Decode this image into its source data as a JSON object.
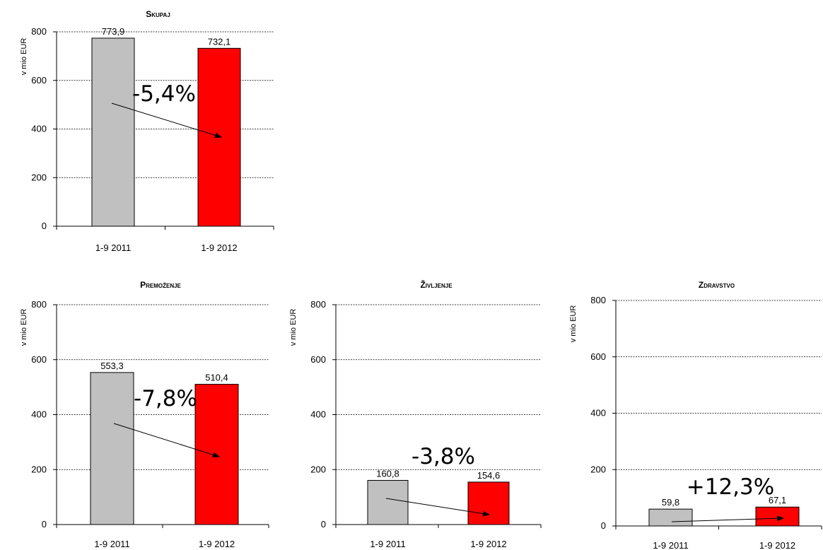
{
  "chart_data": [
    {
      "type": "bar",
      "title": "Skupaj",
      "ylabel": "v mio EUR",
      "categories": [
        "1-9 2011",
        "1-9 2012"
      ],
      "values": [
        773.9,
        732.1
      ],
      "value_labels": [
        "773,9",
        "732,1"
      ],
      "ylim": [
        0,
        800
      ],
      "yticks": [
        "0",
        "200",
        "400",
        "600",
        "800"
      ],
      "bar_colors": [
        "#c0c0c0",
        "#ff0000"
      ],
      "grid": true,
      "annotation": "-5,4%"
    },
    {
      "type": "bar",
      "title": "Premoženje",
      "ylabel": "v mio EUR",
      "categories": [
        "1-9 2011",
        "1-9 2012"
      ],
      "values": [
        553.3,
        510.4
      ],
      "value_labels": [
        "553,3",
        "510,4"
      ],
      "ylim": [
        0,
        800
      ],
      "yticks": [
        "0",
        "200",
        "400",
        "600",
        "800"
      ],
      "bar_colors": [
        "#c0c0c0",
        "#ff0000"
      ],
      "grid": true,
      "annotation": "-7,8%"
    },
    {
      "type": "bar",
      "title": "Življenje",
      "ylabel": "v mio EUR",
      "categories": [
        "1-9 2011",
        "1-9 2012"
      ],
      "values": [
        160.8,
        154.6
      ],
      "value_labels": [
        "160,8",
        "154,6"
      ],
      "ylim": [
        0,
        800
      ],
      "yticks": [
        "0",
        "200",
        "400",
        "600",
        "800"
      ],
      "bar_colors": [
        "#c0c0c0",
        "#ff0000"
      ],
      "grid": true,
      "annotation": "-3,8%"
    },
    {
      "type": "bar",
      "title": "Zdravstvo",
      "ylabel": "v mio EUR",
      "categories": [
        "1-9 2011",
        "1-9 2012"
      ],
      "values": [
        59.8,
        67.1
      ],
      "value_labels": [
        "59,8",
        "67,1"
      ],
      "ylim": [
        0,
        800
      ],
      "yticks": [
        "0",
        "200",
        "400",
        "600",
        "800"
      ],
      "bar_colors": [
        "#c0c0c0",
        "#ff0000"
      ],
      "grid": true,
      "annotation": "+12,3%"
    }
  ]
}
